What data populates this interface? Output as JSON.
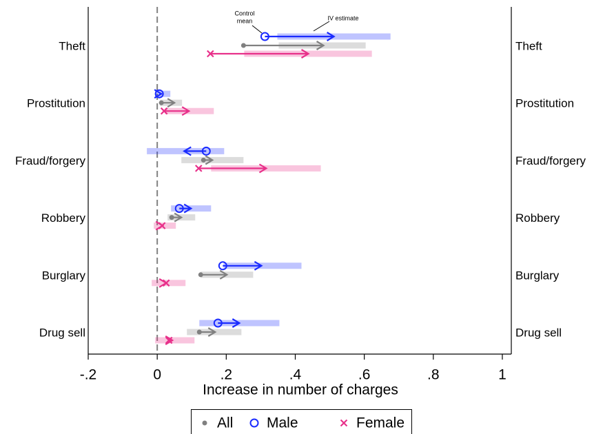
{
  "chart_data": {
    "type": "dumbbell-arrow",
    "x_label": "Increase in number of charges",
    "categories": [
      "Theft",
      "Prostitution",
      "Fraud/forgery",
      "Robbery",
      "Burglary",
      "Drug sell"
    ],
    "annotations": {
      "control": [
        "Control",
        "mean"
      ],
      "estimate": "IV estimate"
    },
    "xlim": [
      -0.2,
      1.026
    ],
    "xticks": [
      {
        "value": -0.2,
        "label": "-.2"
      },
      0,
      {
        "value": 0.2,
        "label": ".2"
      },
      {
        "value": 0.4,
        "label": ".4"
      },
      {
        "value": 0.6,
        "label": ".6"
      },
      {
        "value": 0.8,
        "label": ".8"
      },
      1
    ],
    "reference_line": 0,
    "series": [
      {
        "name": "All",
        "color": "#808080",
        "marker": "dot",
        "control": [
          0.25,
          0.012,
          0.134,
          0.042,
          0.126,
          0.122
        ],
        "estimate": [
          0.482,
          0.05,
          0.16,
          0.07,
          0.202,
          0.168
        ],
        "ci_low": [
          0.352,
          0.008,
          0.07,
          0.03,
          0.126,
          0.086
        ],
        "ci_high": [
          0.604,
          0.072,
          0.25,
          0.11,
          0.278,
          0.244
        ]
      },
      {
        "name": "Male",
        "color": "#1a2bff",
        "marker": "circle",
        "control": [
          0.312,
          0.006,
          0.142,
          0.064,
          0.19,
          0.176
        ],
        "estimate": [
          0.512,
          0.012,
          0.078,
          0.098,
          0.302,
          0.238
        ],
        "ci_low": [
          0.348,
          -0.006,
          -0.03,
          0.04,
          0.192,
          0.122
        ],
        "ci_high": [
          0.676,
          0.038,
          0.194,
          0.156,
          0.418,
          0.354
        ]
      },
      {
        "name": "Female",
        "color": "#e8308a",
        "marker": "x",
        "control": [
          0.154,
          0.02,
          0.12,
          0.014,
          0.026,
          0.034
        ],
        "estimate": [
          0.438,
          0.092,
          0.316,
          0.016,
          0.026,
          0.044
        ],
        "ci_low": [
          0.252,
          0.022,
          0.156,
          -0.01,
          -0.016,
          -0.006
        ],
        "ci_high": [
          0.622,
          0.164,
          0.474,
          0.054,
          0.082,
          0.108
        ]
      }
    ]
  }
}
